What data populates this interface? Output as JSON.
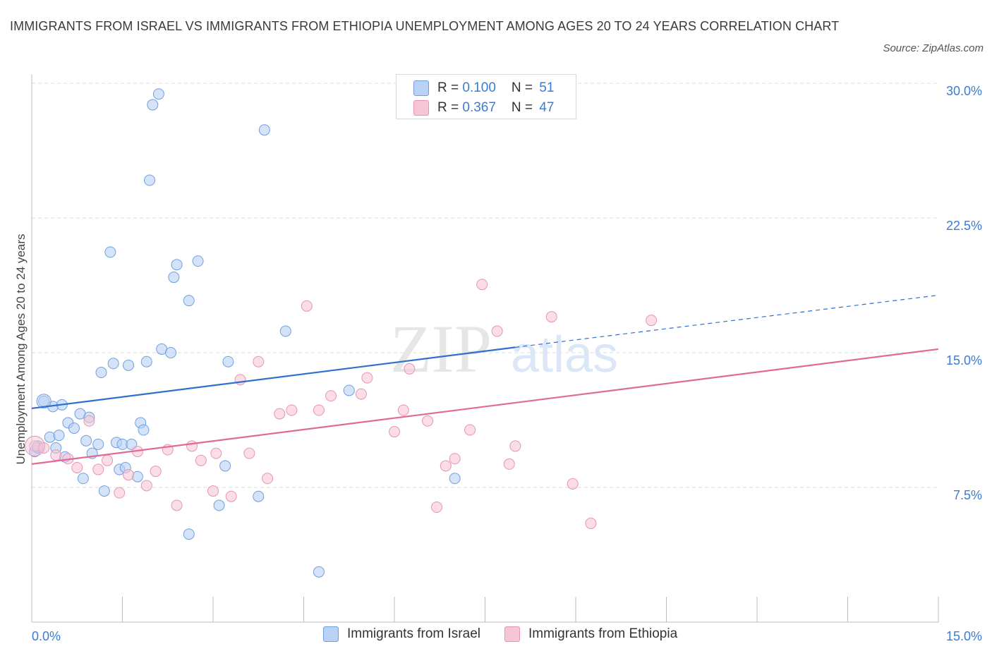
{
  "header": {
    "title": "IMMIGRANTS FROM ISRAEL VS IMMIGRANTS FROM ETHIOPIA UNEMPLOYMENT AMONG AGES 20 TO 24 YEARS CORRELATION CHART",
    "source": "Source: ZipAtlas.com"
  },
  "watermark": {
    "zip": "ZIP",
    "atlas": "atlas"
  },
  "legend": {
    "r_label": "R = ",
    "n_label": "N = ",
    "israel": {
      "r": "0.100",
      "n": "51"
    },
    "ethiopia": {
      "r": "0.367",
      "n": "47"
    }
  },
  "colors": {
    "israel_fill": "#b9d1f3",
    "israel_stroke": "#6f9fe0",
    "israel_line": "#2f6fcf",
    "ethiopia_fill": "#f6c6d6",
    "ethiopia_stroke": "#e695b1",
    "ethiopia_line": "#e06a96",
    "axis_text": "#3a7bd5"
  },
  "chart_data": {
    "type": "scatter",
    "title": "IMMIGRANTS FROM ISRAEL VS IMMIGRANTS FROM ETHIOPIA UNEMPLOYMENT AMONG AGES 20 TO 24 YEARS CORRELATION CHART",
    "xlabel": "",
    "ylabel": "Unemployment Among Ages 20 to 24 years",
    "xlim": [
      0,
      15
    ],
    "ylim": [
      0,
      30
    ],
    "x_tick_labels": [
      "0.0%",
      "15.0%"
    ],
    "y_ticks": [
      7.5,
      15.0,
      22.5,
      30.0
    ],
    "y_tick_labels": [
      "7.5%",
      "15.0%",
      "22.5%",
      "30.0%"
    ],
    "grid": true,
    "series": [
      {
        "name": "Immigrants from Israel",
        "points": [
          [
            0.05,
            9.5
          ],
          [
            0.1,
            9.7
          ],
          [
            0.2,
            12.3
          ],
          [
            0.3,
            10.3
          ],
          [
            0.35,
            12.0
          ],
          [
            0.4,
            9.7
          ],
          [
            0.45,
            10.4
          ],
          [
            0.5,
            12.1
          ],
          [
            0.55,
            9.2
          ],
          [
            0.6,
            11.1
          ],
          [
            0.7,
            10.8
          ],
          [
            0.8,
            11.6
          ],
          [
            0.85,
            8.0
          ],
          [
            0.9,
            10.1
          ],
          [
            0.95,
            11.4
          ],
          [
            1.0,
            9.4
          ],
          [
            1.1,
            9.9
          ],
          [
            1.15,
            13.9
          ],
          [
            1.2,
            7.3
          ],
          [
            1.3,
            20.6
          ],
          [
            1.35,
            14.4
          ],
          [
            1.4,
            10.0
          ],
          [
            1.45,
            8.5
          ],
          [
            1.5,
            9.9
          ],
          [
            1.55,
            8.6
          ],
          [
            1.6,
            14.3
          ],
          [
            1.65,
            9.9
          ],
          [
            1.75,
            8.1
          ],
          [
            1.8,
            11.1
          ],
          [
            1.85,
            10.7
          ],
          [
            1.9,
            14.5
          ],
          [
            1.95,
            24.6
          ],
          [
            2.0,
            28.8
          ],
          [
            2.1,
            29.4
          ],
          [
            2.15,
            15.2
          ],
          [
            2.3,
            15.0
          ],
          [
            2.35,
            19.2
          ],
          [
            2.4,
            19.9
          ],
          [
            2.6,
            17.9
          ],
          [
            2.6,
            4.9
          ],
          [
            2.75,
            20.1
          ],
          [
            3.1,
            6.5
          ],
          [
            3.2,
            8.7
          ],
          [
            3.25,
            14.5
          ],
          [
            3.75,
            7.0
          ],
          [
            3.85,
            27.4
          ],
          [
            4.2,
            16.2
          ],
          [
            4.75,
            2.8
          ],
          [
            5.25,
            12.9
          ],
          [
            7.0,
            8.0
          ],
          [
            0.1,
            9.8
          ]
        ]
      },
      {
        "name": "Immigrants from Ethiopia",
        "points": [
          [
            0.05,
            9.8
          ],
          [
            0.2,
            9.7
          ],
          [
            0.4,
            9.3
          ],
          [
            0.6,
            9.1
          ],
          [
            0.75,
            8.6
          ],
          [
            0.95,
            11.2
          ],
          [
            1.1,
            8.5
          ],
          [
            1.25,
            9.0
          ],
          [
            1.45,
            7.2
          ],
          [
            1.6,
            8.2
          ],
          [
            1.75,
            9.5
          ],
          [
            1.9,
            7.6
          ],
          [
            2.05,
            8.4
          ],
          [
            2.25,
            9.6
          ],
          [
            2.4,
            6.5
          ],
          [
            2.65,
            9.8
          ],
          [
            2.8,
            9.0
          ],
          [
            3.0,
            7.3
          ],
          [
            3.05,
            9.4
          ],
          [
            3.3,
            7.0
          ],
          [
            3.45,
            13.5
          ],
          [
            3.6,
            9.4
          ],
          [
            3.75,
            14.5
          ],
          [
            3.9,
            8.0
          ],
          [
            4.1,
            11.6
          ],
          [
            4.3,
            11.8
          ],
          [
            4.55,
            17.6
          ],
          [
            4.75,
            11.8
          ],
          [
            4.95,
            12.6
          ],
          [
            5.45,
            12.7
          ],
          [
            5.55,
            13.6
          ],
          [
            6.0,
            10.6
          ],
          [
            6.15,
            11.8
          ],
          [
            6.25,
            14.1
          ],
          [
            6.55,
            11.2
          ],
          [
            6.7,
            6.4
          ],
          [
            6.85,
            8.7
          ],
          [
            7.0,
            9.1
          ],
          [
            7.25,
            10.7
          ],
          [
            7.45,
            18.8
          ],
          [
            7.7,
            16.2
          ],
          [
            7.9,
            8.8
          ],
          [
            8.0,
            9.8
          ],
          [
            8.6,
            17.0
          ],
          [
            8.95,
            7.7
          ],
          [
            9.25,
            5.5
          ],
          [
            10.25,
            16.8
          ]
        ]
      }
    ],
    "trend_lines": [
      {
        "name": "Immigrants from Israel",
        "solid": [
          [
            0,
            11.9
          ],
          [
            8.0,
            15.3
          ]
        ],
        "dashed": [
          [
            8.0,
            15.3
          ],
          [
            15.0,
            18.2
          ]
        ]
      },
      {
        "name": "Immigrants from Ethiopia",
        "solid": [
          [
            0,
            8.8
          ],
          [
            15.0,
            15.2
          ]
        ]
      }
    ]
  },
  "bottom_legend": {
    "israel": "Immigrants from Israel",
    "ethiopia": "Immigrants from Ethiopia"
  }
}
